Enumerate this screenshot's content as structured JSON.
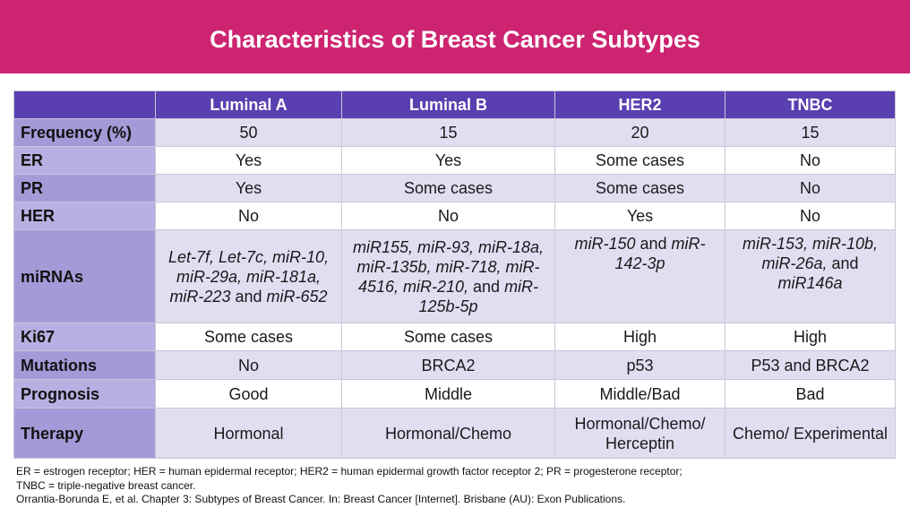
{
  "title": "Characteristics of Breast Cancer Subtypes",
  "columns": [
    "Luminal A",
    "Luminal B",
    "HER2",
    "TNBC"
  ],
  "rows": [
    {
      "label": "Frequency (%)",
      "values": [
        "50",
        "15",
        "20",
        "15"
      ]
    },
    {
      "label": "ER",
      "values": [
        "Yes",
        "Yes",
        "Some cases",
        "No"
      ]
    },
    {
      "label": "PR",
      "values": [
        "Yes",
        "Some cases",
        "Some cases",
        "No"
      ]
    },
    {
      "label": "HER",
      "values": [
        "No",
        "No",
        "Yes",
        "No"
      ]
    },
    {
      "label": "miRNAs",
      "values": [
        "Let-7f, Let-7c, miR-10, miR-29a, miR-181a, miR-223 and miR-652",
        "miR155, miR-93, miR-18a, miR-135b, miR-718, miR-4516, miR-210, and miR-125b-5p",
        "miR-150 and miR-142-3p",
        "miR-153, miR-10b, miR-26a, and miR146a"
      ]
    },
    {
      "label": "Ki67",
      "values": [
        "Some cases",
        "Some cases",
        "High",
        "High"
      ]
    },
    {
      "label": "Mutations",
      "values": [
        "No",
        "BRCA2",
        "p53",
        "P53 and BRCA2"
      ]
    },
    {
      "label": "Prognosis",
      "values": [
        "Good",
        "Middle",
        "Middle/Bad",
        "Bad"
      ]
    },
    {
      "label": "Therapy",
      "values": [
        "Hormonal",
        "Hormonal/Chemo",
        "Hormonal/Chemo/ Herceptin",
        "Chemo/ Experimental"
      ]
    }
  ],
  "footnote": {
    "line1": "ER = estrogen receptor; HER = human epidermal receptor; HER2 = human epidermal growth factor receptor 2; PR = progesterone receptor;",
    "line2": "TNBC = triple-negative breast cancer.",
    "line3": "Orrantia-Borunda E, et al. Chapter 3: Subtypes of Breast Cancer.  In: Breast Cancer [Internet]. Brisbane (AU): Exon Publications."
  },
  "colors": {
    "banner": "#cc2470",
    "header": "#5a3fb0",
    "row_label": "#a79bd9",
    "row_alt": "#e1def2"
  }
}
